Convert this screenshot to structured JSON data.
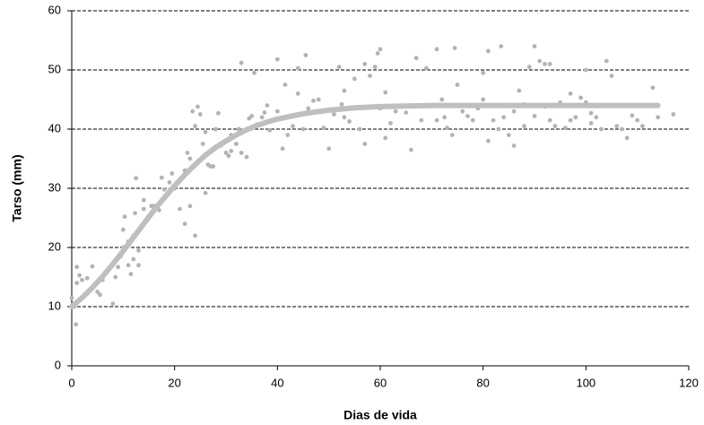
{
  "chart_data": {
    "type": "scatter",
    "x_label": "Dias de vida",
    "y_label": "Tarso (mm)",
    "xlim": [
      0,
      120
    ],
    "xticks": [
      0,
      20,
      40,
      60,
      80,
      100,
      120
    ],
    "ylim": [
      0,
      60
    ],
    "yticks": [
      0,
      10,
      20,
      30,
      40,
      50,
      60
    ],
    "grid": true,
    "series": [
      {
        "type": "scatter",
        "color": "#b3b3b3",
        "x": [
          0,
          0.5,
          0.8,
          1,
          1,
          1.5,
          2,
          3,
          4,
          5,
          5.5,
          6,
          7,
          8,
          8.5,
          9,
          9.5,
          10,
          10,
          10.3,
          11,
          11,
          11.5,
          12,
          12,
          12.3,
          12.5,
          13,
          13,
          13.5,
          14,
          14,
          15,
          15.5,
          16,
          17,
          17.5,
          18,
          19,
          19.5,
          20,
          21,
          21,
          22,
          22,
          22.5,
          23,
          23,
          23.5,
          24,
          24,
          24.5,
          25,
          25.5,
          26,
          26,
          26.5,
          27,
          27.5,
          28,
          28.5,
          29,
          30,
          30.5,
          31,
          31,
          32,
          32.5,
          33,
          33,
          34,
          34.5,
          35,
          35.5,
          36,
          37,
          37.5,
          38,
          38.5,
          40,
          40,
          41,
          41.5,
          42,
          43,
          44,
          44,
          45,
          45.5,
          46,
          47,
          48,
          49,
          50,
          51,
          52,
          52.5,
          53,
          53,
          54,
          55,
          56,
          57,
          57,
          58,
          59,
          59.5,
          60,
          60,
          61,
          61,
          62,
          63,
          64,
          65,
          66,
          67,
          68,
          69,
          70,
          71,
          71,
          72,
          72.5,
          73,
          74,
          74.5,
          75,
          76,
          77,
          78,
          79,
          80,
          80,
          81,
          81,
          82,
          83,
          83.5,
          84,
          85,
          86,
          86,
          87,
          88,
          88,
          89,
          90,
          90,
          91,
          92,
          92,
          93,
          93,
          94,
          95,
          96,
          97,
          97,
          98,
          99,
          100,
          100,
          101,
          101,
          102,
          103,
          104,
          104,
          105,
          106,
          107,
          108,
          109,
          110,
          111,
          113,
          114,
          117
        ],
        "values": [
          11.5,
          10,
          7,
          14,
          16.7,
          15.3,
          14.5,
          14.8,
          16.8,
          12.5,
          12,
          14.5,
          16,
          10.5,
          15,
          16.7,
          18.5,
          20,
          23,
          25.2,
          17,
          21,
          15.5,
          18,
          22,
          25.8,
          31.7,
          17,
          19.5,
          23.5,
          26.5,
          28,
          25,
          27,
          27,
          26.3,
          31.8,
          29.8,
          31,
          32.5,
          30,
          31.5,
          26.5,
          24,
          33,
          36,
          27,
          35,
          43,
          22,
          40.5,
          43.8,
          42.5,
          37.5,
          29.2,
          39.5,
          34,
          33.7,
          33.7,
          40,
          42.7,
          37.2,
          36,
          35.5,
          39,
          36.3,
          37.5,
          40,
          36,
          51.2,
          35.3,
          41.8,
          42.2,
          49.5,
          40.8,
          42,
          42.8,
          44,
          39.8,
          43,
          51.8,
          36.7,
          47.5,
          39,
          40.5,
          50.3,
          46,
          40,
          52.5,
          43.5,
          44.8,
          45,
          40.2,
          36.7,
          42.5,
          50.5,
          44.2,
          42,
          46.5,
          41.3,
          48.5,
          40,
          37.5,
          51,
          49,
          50.5,
          52.8,
          53.5,
          43.5,
          46.2,
          38.5,
          41,
          43,
          44,
          42.8,
          36.5,
          52,
          41.5,
          50.3,
          44,
          53.5,
          41.5,
          45,
          42,
          40.2,
          39,
          53.7,
          47.5,
          43,
          42.2,
          41.5,
          43.5,
          49.5,
          45,
          53.2,
          38,
          41.5,
          40,
          54,
          42,
          39,
          43,
          37.2,
          46.5,
          40.5,
          44.2,
          50.5,
          54,
          42.2,
          51.5,
          51,
          43.8,
          51,
          41.5,
          40.5,
          44.5,
          40.2,
          46,
          41.5,
          42,
          45.3,
          50,
          44.5,
          42.7,
          41,
          42,
          40,
          51.5,
          44,
          49,
          40.5,
          40,
          38.5,
          42.3,
          41.5,
          40.5,
          47,
          42,
          42.5
        ]
      },
      {
        "type": "line",
        "color": "#bfbfbf",
        "x": [
          0,
          2,
          4,
          6,
          8,
          10,
          12,
          14,
          16,
          18,
          20,
          22,
          24,
          26,
          28,
          30,
          32,
          34,
          36,
          38,
          40,
          45,
          50,
          55,
          60,
          70,
          80,
          90,
          100,
          110,
          114
        ],
        "values": [
          10,
          11.5,
          13.2,
          15.1,
          17.2,
          19.4,
          21.7,
          24,
          26.3,
          28.4,
          30.4,
          32.3,
          34,
          35.6,
          36.9,
          38,
          39,
          39.9,
          40.6,
          41.2,
          41.7,
          42.6,
          43.2,
          43.6,
          43.8,
          44,
          44,
          44,
          44,
          44,
          44
        ]
      }
    ]
  }
}
